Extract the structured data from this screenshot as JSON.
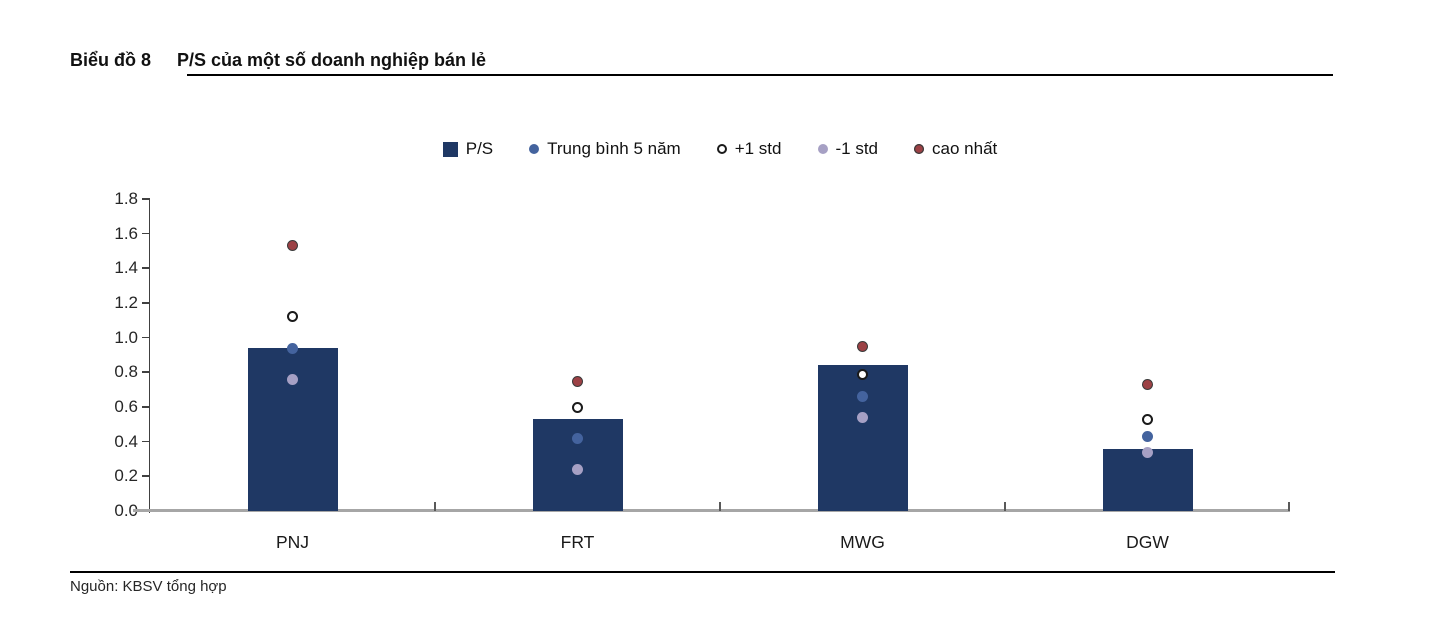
{
  "figure": {
    "title_prefix": "Biểu đồ 8",
    "title_text": "P/S của một số doanh nghiệp bán lẻ",
    "source": "Nguồn: KBSV tổng hợp"
  },
  "colors": {
    "bar": "#1f3864",
    "mean_dot": "#44639e",
    "plus_std_fill": "#ffffff",
    "plus_std_border": "#1a1a1a",
    "minus_std_dot": "#a6a0c4",
    "max_fill": "#9c4145",
    "max_border": "#3a3a3a",
    "axis_line": "#404040",
    "baseline": "#a6a6a6",
    "tick": "#595959",
    "text": "#1a1a1a"
  },
  "legend": {
    "items": [
      {
        "label": "P/S",
        "marker": "square",
        "color": "#1f3864"
      },
      {
        "label": "Trung bình 5 năm",
        "marker": "dot",
        "color": "#44639e"
      },
      {
        "label": "+1 std",
        "marker": "hollow",
        "color": "#ffffff",
        "border": "#1a1a1a"
      },
      {
        "label": "-1 std",
        "marker": "dot",
        "color": "#a6a0c4"
      },
      {
        "label": "cao nhất",
        "marker": "dot",
        "color": "#9c4145",
        "border": "#3a3a3a"
      }
    ]
  },
  "chart_data": {
    "type": "bar",
    "title": "P/S của một số doanh nghiệp bán lẻ",
    "categories": [
      "PNJ",
      "FRT",
      "MWG",
      "DGW"
    ],
    "series": [
      {
        "name": "P/S",
        "kind": "bar",
        "values": [
          0.94,
          0.53,
          0.84,
          0.36
        ],
        "color": "#1f3864"
      },
      {
        "name": "Trung bình 5 năm",
        "kind": "point",
        "values": [
          0.94,
          0.42,
          0.66,
          0.43
        ],
        "color": "#44639e"
      },
      {
        "name": "+1 std",
        "kind": "point",
        "values": [
          1.12,
          0.6,
          0.79,
          0.53
        ],
        "color": "#ffffff",
        "border": "#1a1a1a"
      },
      {
        "name": "-1 std",
        "kind": "point",
        "values": [
          0.76,
          0.24,
          0.54,
          0.34
        ],
        "color": "#a6a0c4"
      },
      {
        "name": "cao nhất",
        "kind": "point",
        "values": [
          1.53,
          0.75,
          0.95,
          0.73
        ],
        "color": "#9c4145",
        "border": "#3a3a3a"
      }
    ],
    "ylim": [
      0,
      1.8
    ],
    "ytick_step": 0.2,
    "ytick_labels": [
      "0.0",
      "0.2",
      "0.4",
      "0.6",
      "0.8",
      "1.0",
      "1.2",
      "1.4",
      "1.6",
      "1.8"
    ],
    "xlabel": "",
    "ylabel": "",
    "grid": false,
    "legend_position": "top"
  }
}
